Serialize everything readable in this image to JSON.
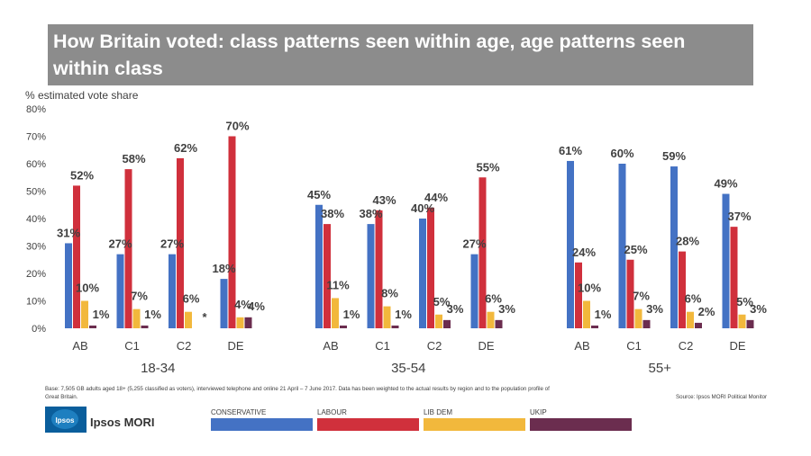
{
  "title": "How Britain voted: class patterns seen within age, age patterns seen within class",
  "footnote": "Base: 7,505 GB adults aged 18+ (5,255 classified as voters), interviewed telephone and online 21 April – 7 June 2017. Data has been weighted to the actual results by region and to the population profile of Great Britain.",
  "source": "Source: Ipsos MORI Political Monitor",
  "brand": {
    "logo_text": "Ipsos",
    "name": "Ipsos MORI"
  },
  "colors": {
    "CONSERVATIVE": "#4472c4",
    "LABOUR": "#d0303c",
    "LIB DEM": "#f2b83c",
    "UKIP": "#6b2d4f"
  },
  "legend": [
    "CONSERVATIVE",
    "LABOUR",
    "LIB DEM",
    "UKIP"
  ],
  "chart_data": {
    "type": "bar",
    "ylabel": "% estimated vote share",
    "ylim": [
      0,
      80
    ],
    "yticks": [
      "0%",
      "10%",
      "20%",
      "30%",
      "40%",
      "50%",
      "60%",
      "70%",
      "80%"
    ],
    "series_names": [
      "CONSERVATIVE",
      "LABOUR",
      "LIB DEM",
      "UKIP"
    ],
    "groups": [
      {
        "name": "18-34",
        "classes": [
          {
            "label": "AB",
            "values": [
              31,
              52,
              10,
              1
            ],
            "labels": [
              "31%",
              "52%",
              "10%",
              "1%"
            ]
          },
          {
            "label": "C1",
            "values": [
              27,
              58,
              7,
              1
            ],
            "labels": [
              "27%",
              "58%",
              "7%",
              "1%"
            ]
          },
          {
            "label": "C2",
            "values": [
              27,
              62,
              6,
              0
            ],
            "labels": [
              "27%",
              "62%",
              "6%",
              "*"
            ]
          },
          {
            "label": "DE",
            "values": [
              18,
              70,
              4,
              4
            ],
            "labels": [
              "18%",
              "70%",
              "4%",
              "4%"
            ]
          }
        ]
      },
      {
        "name": "35-54",
        "classes": [
          {
            "label": "AB",
            "values": [
              45,
              38,
              11,
              1
            ],
            "labels": [
              "45%",
              "38%",
              "11%",
              "1%"
            ]
          },
          {
            "label": "C1",
            "values": [
              38,
              43,
              8,
              1
            ],
            "labels": [
              "38%",
              "43%",
              "8%",
              "1%"
            ]
          },
          {
            "label": "C2",
            "values": [
              40,
              44,
              5,
              3
            ],
            "labels": [
              "40%",
              "44%",
              "5%",
              "3%"
            ]
          },
          {
            "label": "DE",
            "values": [
              27,
              55,
              6,
              3
            ],
            "labels": [
              "27%",
              "55%",
              "6%",
              "3%"
            ]
          }
        ]
      },
      {
        "name": "55+",
        "classes": [
          {
            "label": "AB",
            "values": [
              61,
              24,
              10,
              1
            ],
            "labels": [
              "61%",
              "24%",
              "10%",
              "1%"
            ]
          },
          {
            "label": "C1",
            "values": [
              60,
              25,
              7,
              3
            ],
            "labels": [
              "60%",
              "25%",
              "7%",
              "3%"
            ]
          },
          {
            "label": "C2",
            "values": [
              59,
              28,
              6,
              2
            ],
            "labels": [
              "59%",
              "28%",
              "6%",
              "2%"
            ]
          },
          {
            "label": "DE",
            "values": [
              49,
              37,
              5,
              3
            ],
            "labels": [
              "49%",
              "37%",
              "5%",
              "3%"
            ]
          }
        ]
      }
    ]
  }
}
